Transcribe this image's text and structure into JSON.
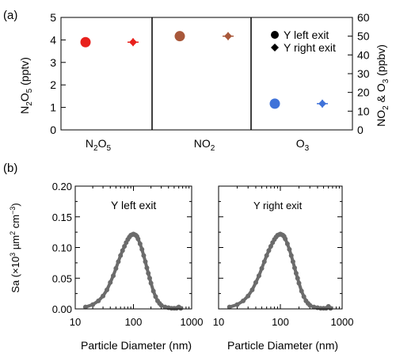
{
  "colors": {
    "n2o5": "#e8201c",
    "no2": "#a8583a",
    "o3": "#3f72d9",
    "size_dist": "#6b6b6b",
    "axis": "#000000"
  },
  "panel_a": {
    "label": "(a)",
    "left_axis": {
      "label_parts": [
        "N",
        "2",
        "O",
        "5",
        " (pptv)"
      ],
      "ylim": [
        0,
        5
      ],
      "ticks": [
        "0",
        "1",
        "2",
        "3",
        "4",
        "5"
      ]
    },
    "right_axis": {
      "label_parts": [
        "NO",
        "2",
        " & O",
        "3",
        " (ppbv)"
      ],
      "ylim": [
        0,
        60
      ],
      "ticks": [
        "0",
        "10",
        "20",
        "30",
        "40",
        "50",
        "60"
      ]
    },
    "species": [
      {
        "name_parts": [
          "N",
          "2",
          "O",
          "5",
          ""
        ],
        "color_key": "n2o5"
      },
      {
        "name_parts": [
          "NO",
          "2",
          "",
          "",
          ""
        ],
        "color_key": "no2"
      },
      {
        "name_parts": [
          "O",
          "3",
          "",
          "",
          ""
        ],
        "color_key": "o3"
      }
    ],
    "legend": [
      "Y left exit",
      "Y right exit"
    ],
    "legend_position": "top-right"
  },
  "panel_b": {
    "label": "(b)",
    "ylabel_parts": [
      "Sa (×10",
      "3",
      " µm",
      "2",
      " cm",
      "−3",
      ")"
    ],
    "ylim": [
      0,
      0.2
    ],
    "yticks": [
      "0.00",
      "0.05",
      "0.10",
      "0.15",
      "0.20"
    ],
    "xticks": [
      "10",
      "100",
      "1000"
    ],
    "xticks_right": [
      "10",
      "100",
      "1000"
    ],
    "xlabel": "Particle Diameter (nm)",
    "subplot_titles": [
      "Y left exit",
      "Y right exit"
    ]
  },
  "chart_data": [
    {
      "type": "scatter",
      "panel": "(a)",
      "categories": [
        "N2O5",
        "NO2",
        "O3"
      ],
      "axes": {
        "left": {
          "label": "N2O5 (pptv)",
          "ylim": [
            0,
            5
          ]
        },
        "right": {
          "label": "NO2 & O3 (ppbv)",
          "ylim": [
            0,
            60
          ]
        }
      },
      "series": [
        {
          "name": "Y left exit",
          "marker": "circle",
          "points": [
            {
              "category": "N2O5",
              "axis": "left",
              "value": 3.9
            },
            {
              "category": "NO2",
              "axis": "right",
              "value": 50
            },
            {
              "category": "O3",
              "axis": "right",
              "value": 14
            }
          ]
        },
        {
          "name": "Y right exit",
          "marker": "diamond",
          "points": [
            {
              "category": "N2O5",
              "axis": "left",
              "value": 3.9,
              "err": 0.07
            },
            {
              "category": "NO2",
              "axis": "right",
              "value": 50,
              "err": 0.8
            },
            {
              "category": "O3",
              "axis": "right",
              "value": 14,
              "err": 0.8
            }
          ]
        }
      ]
    },
    {
      "type": "scatter",
      "panel": "(b)",
      "title": "Y left exit",
      "xlabel": "Particle Diameter (nm)",
      "ylabel": "Sa (×10^3 µm^2 cm^-3)",
      "xscale": "log",
      "xlim": [
        10,
        1000
      ],
      "ylim": [
        0,
        0.2
      ],
      "x": [
        15,
        20,
        25,
        30,
        35,
        40,
        45,
        50,
        55,
        60,
        65,
        70,
        75,
        80,
        85,
        90,
        95,
        100,
        105,
        110,
        115,
        120,
        130,
        140,
        150,
        160,
        170,
        180,
        190,
        200,
        220,
        240,
        260,
        280,
        300,
        350,
        400,
        450,
        500,
        550,
        600,
        650
      ],
      "y": [
        0.003,
        0.007,
        0.013,
        0.021,
        0.031,
        0.043,
        0.054,
        0.066,
        0.077,
        0.087,
        0.095,
        0.102,
        0.108,
        0.113,
        0.117,
        0.12,
        0.121,
        0.122,
        0.121,
        0.12,
        0.118,
        0.114,
        0.106,
        0.097,
        0.087,
        0.077,
        0.067,
        0.058,
        0.05,
        0.042,
        0.029,
        0.02,
        0.013,
        0.009,
        0.006,
        0.003,
        0.002,
        0.001,
        0.001,
        0.001,
        0.003,
        0.001
      ]
    },
    {
      "type": "scatter",
      "panel": "(b)",
      "title": "Y right exit",
      "xlabel": "Particle Diameter (nm)",
      "xscale": "log",
      "xlim": [
        10,
        1000
      ],
      "ylim": [
        0,
        0.2
      ],
      "x": [
        15,
        20,
        25,
        30,
        35,
        40,
        45,
        50,
        55,
        60,
        65,
        70,
        75,
        80,
        85,
        90,
        95,
        100,
        105,
        110,
        115,
        120,
        130,
        140,
        150,
        160,
        170,
        180,
        190,
        200,
        220,
        240,
        260,
        280,
        300,
        350,
        400,
        450,
        500,
        550,
        600,
        650
      ],
      "y": [
        0.003,
        0.007,
        0.013,
        0.021,
        0.031,
        0.043,
        0.054,
        0.066,
        0.077,
        0.087,
        0.095,
        0.102,
        0.108,
        0.113,
        0.117,
        0.12,
        0.121,
        0.122,
        0.121,
        0.12,
        0.118,
        0.114,
        0.106,
        0.097,
        0.087,
        0.077,
        0.067,
        0.058,
        0.05,
        0.042,
        0.029,
        0.02,
        0.013,
        0.009,
        0.006,
        0.003,
        0.002,
        0.001,
        0.001,
        0.001,
        0.004,
        0.001
      ]
    }
  ]
}
